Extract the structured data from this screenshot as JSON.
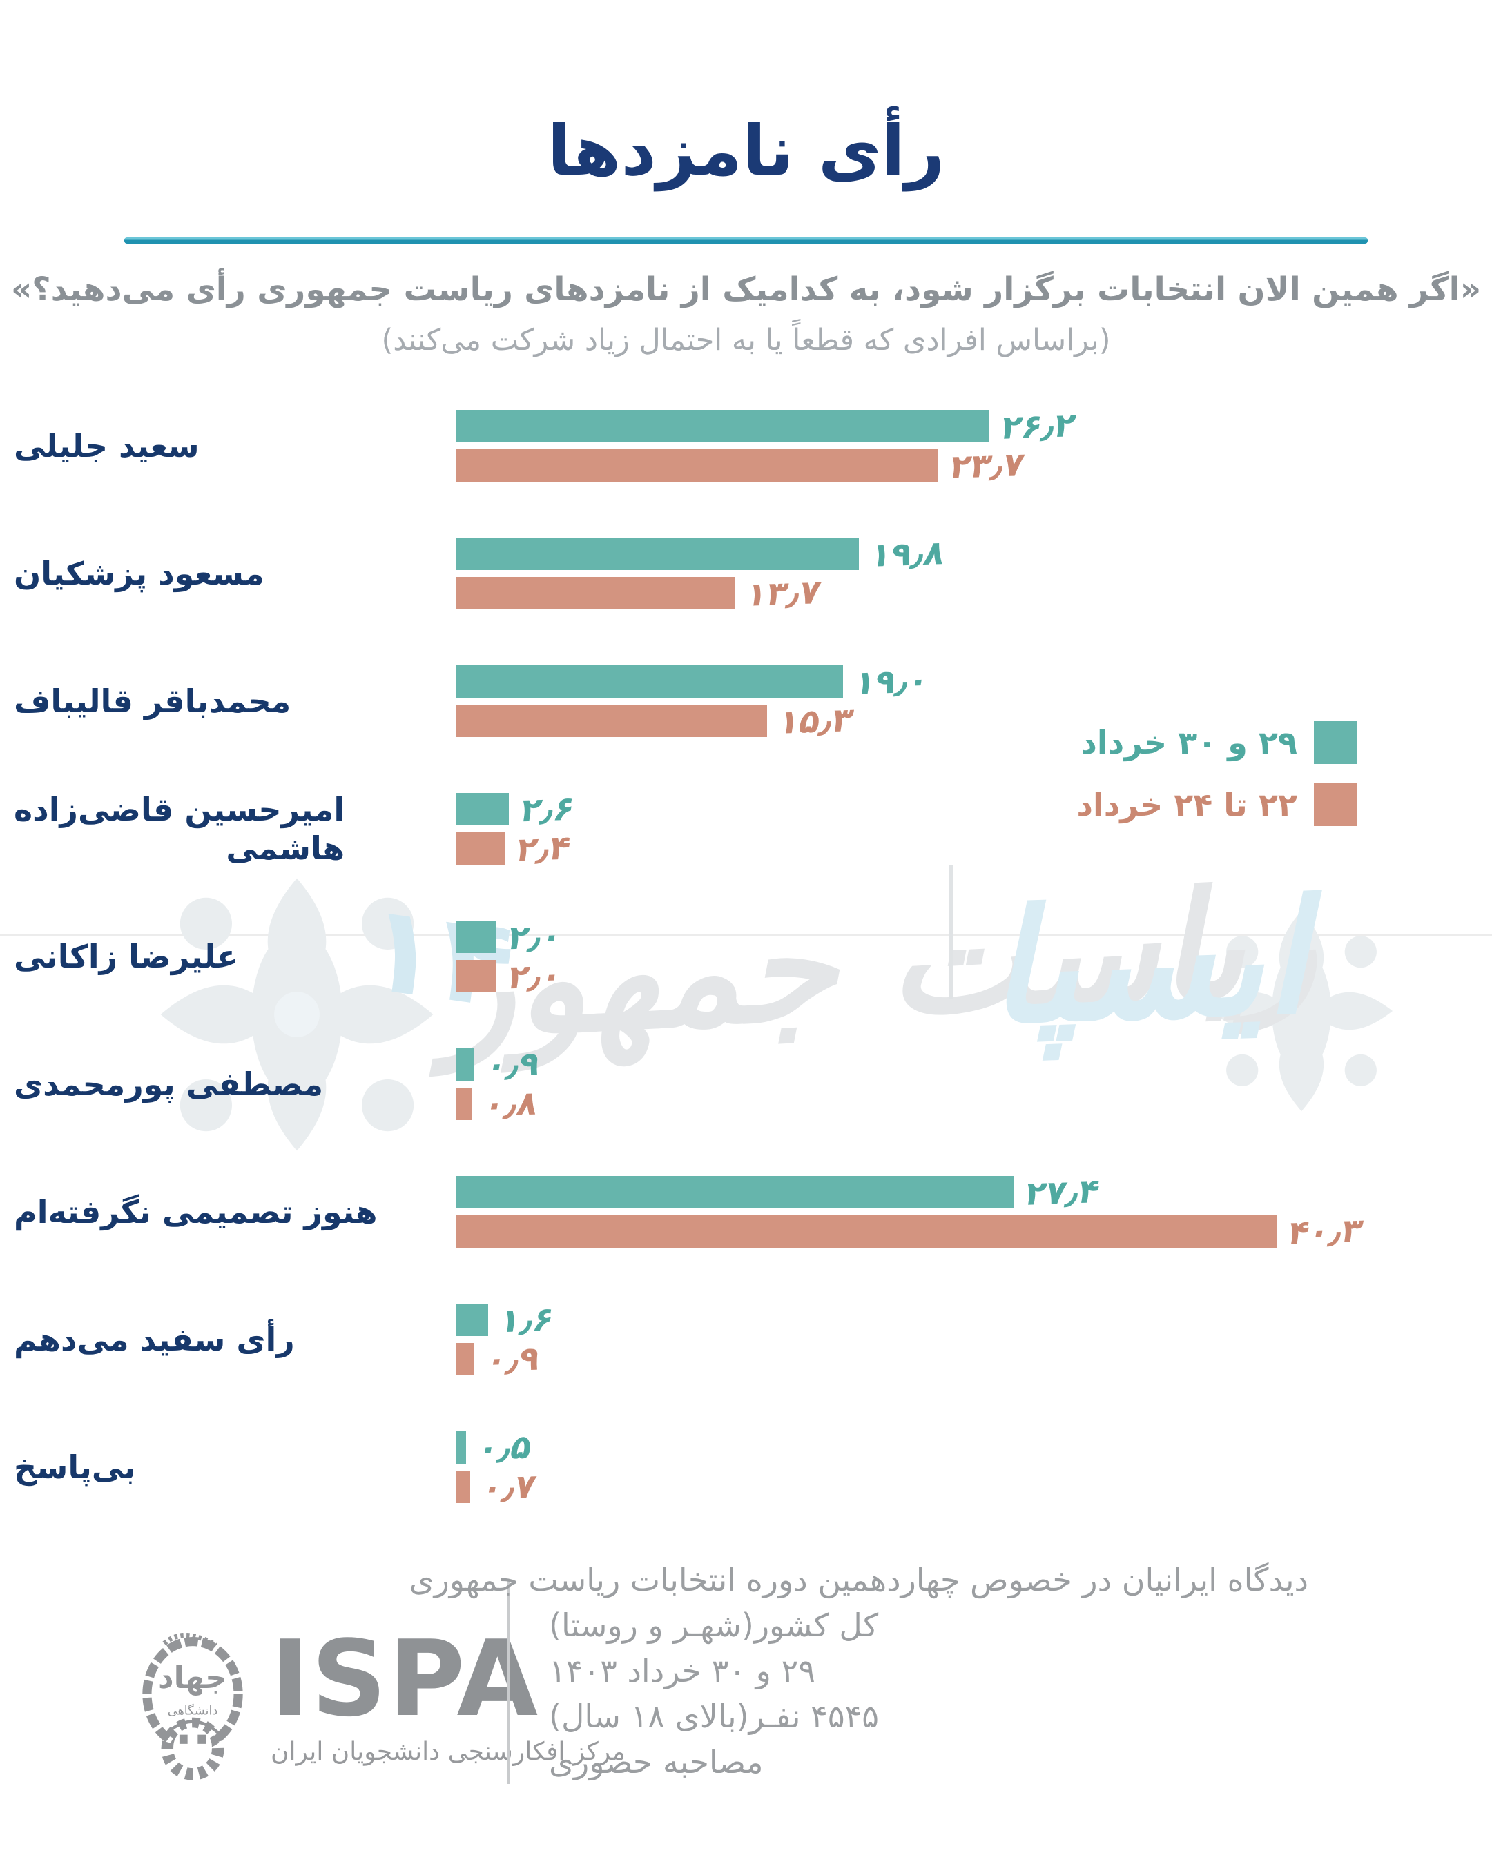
{
  "title": "رأی نامزدها",
  "subtitle": "«اگر همین الان انتخابات برگزار شود، به کدامیک از نامزدهای ریاست جمهوری رأی می‌دهید؟»",
  "subtitle_note": "(براساس افرادی که قطعاً یا به احتمال زیاد شرکت می‌کنند)",
  "colors": {
    "navy": "#17386b",
    "title_navy": "#1b3a75",
    "divider_teal": "#1f92b0",
    "teal_bar": "#66b5ac",
    "teal_text": "#4fa9a0",
    "salmon_bar": "#d39480",
    "salmon_text": "#ca8872",
    "subtitle_gray": "#8b9196",
    "note_gray": "#a6abb0",
    "footer_gray": "#9b9ea1",
    "logo_gray": "#939598",
    "watermark_gray": "#e4e6e8",
    "watermark_blue": "#d9ecf4"
  },
  "legend": {
    "items": [
      {
        "label": "۲۹ و ۳۰ خرداد",
        "color": "#66b5ac",
        "text_color": "#4fa9a0"
      },
      {
        "label": "۲۲ تا ۲۴ خرداد",
        "color": "#d39480",
        "text_color": "#ca8872"
      }
    ]
  },
  "chart_data": {
    "type": "bar",
    "orientation": "horizontal",
    "title": "رأی نامزدها",
    "xlabel": "درصد",
    "ylabel": "نامزدها",
    "xlim": [
      0,
      45
    ],
    "grid": false,
    "legend_position": "middle-right",
    "categories": [
      "سعید جلیلی",
      "مسعود پزشکیان",
      "محمدباقر قالیباف",
      "امیرحسین قاضی‌زاده\nهاشمی",
      "علیرضا زاکانی",
      "مصطفی پورمحمدی",
      "هنوز تصمیمی نگرفته‌ام",
      "رأی سفید می‌دهم",
      "بی‌پاسخ"
    ],
    "series": [
      {
        "name": "۲۹ و ۳۰ خرداد",
        "color": "#66b5ac",
        "text_color": "#4fa9a0",
        "values": [
          26.2,
          19.8,
          19.0,
          2.6,
          2.0,
          0.9,
          27.4,
          1.6,
          0.5
        ],
        "value_labels": [
          "۲۶٫۲",
          "۱۹٫۸",
          "۱۹٫۰",
          "۲٫۶",
          "۲٫۰",
          "۰٫۹",
          "۲۷٫۴",
          "۱٫۶",
          "۰٫۵"
        ]
      },
      {
        "name": "۲۲ تا ۲۴ خرداد",
        "color": "#d39480",
        "text_color": "#ca8872",
        "values": [
          23.7,
          13.7,
          15.3,
          2.4,
          2.0,
          0.8,
          40.3,
          0.9,
          0.7
        ],
        "value_labels": [
          "۲۳٫۷",
          "۱۳٫۷",
          "۱۵٫۳",
          "۲٫۴",
          "۲٫۰",
          "۰٫۸",
          "۴۰٫۳",
          "۰٫۹",
          "۰٫۷"
        ]
      }
    ]
  },
  "watermark": {
    "text_gray": "ریاست جمهور",
    "text_blue": "ایسپا",
    "number": "۱۴"
  },
  "footer": {
    "logo": {
      "name": "ISPA",
      "subtitle": "مرکز افکارسنجی دانشجویان ایران",
      "emblem_top": "جهاد",
      "emblem_bottom": "دانشگاهی"
    },
    "lines": [
      "دیدگاه ایرانیان در خصوص چهاردهمین دوره انتخابات ریاست جمهوری",
      "کل کشور(شهـر و روستا)",
      "۲۹ و ۳۰ خرداد ۱۴۰۳",
      "۴۵۴۵ نفـر(بالای ۱۸ سال)",
      "مصاحبه حضوری"
    ]
  }
}
